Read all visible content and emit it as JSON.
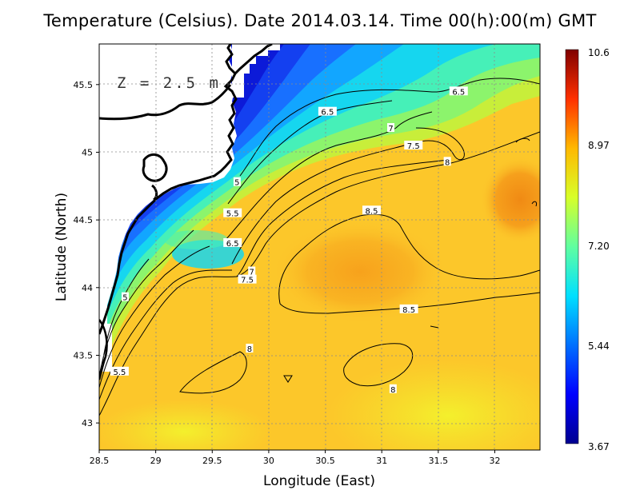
{
  "chart_data": {
    "type": "heatmap",
    "title": "Temperature (Celsius). Date 2014.03.14. Time 00(h):00(m)  GMT",
    "xlabel": "Longitude (East)",
    "ylabel": "Latitude (North)",
    "annotation": "Z = 2.5 m",
    "xlim": [
      28.5,
      32.4
    ],
    "ylim": [
      42.8,
      45.8
    ],
    "x_ticks": [
      "28.5",
      "29",
      "29.5",
      "30",
      "30.5",
      "31",
      "31.5",
      "32"
    ],
    "y_ticks": [
      "43",
      "43.5",
      "44",
      "44.5",
      "45",
      "45.5"
    ],
    "grid": true,
    "colorbar": {
      "min": 3.67,
      "max": 10.6,
      "tick_labels": [
        "10.6",
        "8.97",
        "7.20",
        "5.44",
        "3.67"
      ],
      "colormap": "jet"
    },
    "contour_labels": [
      {
        "text": "5",
        "lon": 29.72,
        "lat": 44.78
      },
      {
        "text": "5.5",
        "lon": 29.68,
        "lat": 44.55
      },
      {
        "text": "6.5",
        "lon": 29.68,
        "lat": 44.33
      },
      {
        "text": "7",
        "lon": 29.85,
        "lat": 44.12
      },
      {
        "text": "7.5",
        "lon": 29.81,
        "lat": 44.06
      },
      {
        "text": "5",
        "lon": 28.73,
        "lat": 43.93
      },
      {
        "text": "5.5",
        "lon": 28.68,
        "lat": 43.38
      },
      {
        "text": "6.5",
        "lon": 30.52,
        "lat": 45.3
      },
      {
        "text": "7",
        "lon": 31.08,
        "lat": 45.18
      },
      {
        "text": "7.5",
        "lon": 31.28,
        "lat": 45.05
      },
      {
        "text": "6.5",
        "lon": 31.68,
        "lat": 45.45
      },
      {
        "text": "8",
        "lon": 31.58,
        "lat": 44.93
      },
      {
        "text": "8.5",
        "lon": 30.91,
        "lat": 44.57
      },
      {
        "text": "8.5",
        "lon": 31.24,
        "lat": 43.84
      },
      {
        "text": "8",
        "lon": 29.83,
        "lat": 43.55
      },
      {
        "text": "8",
        "lon": 31.1,
        "lat": 43.25
      }
    ]
  }
}
